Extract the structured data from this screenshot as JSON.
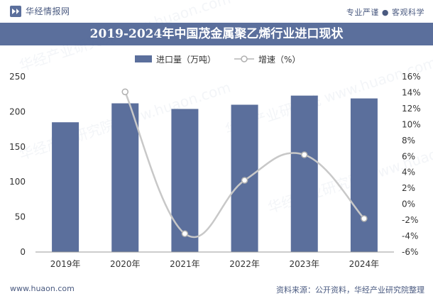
{
  "header": {
    "brand": "华经情报网",
    "slogan": "专业严谨 ● 客观科学"
  },
  "chart_data": {
    "type": "bar",
    "title": "2019-2024年中国茂金属聚乙烯行业进口现状",
    "categories": [
      "2019年",
      "2020年",
      "2021年",
      "2022年",
      "2023年",
      "2024年"
    ],
    "series": [
      {
        "name": "进口量（万吨）",
        "type": "bar",
        "axis": "left",
        "color": "#5b6f9c",
        "values": [
          185,
          212,
          204,
          210,
          223,
          219
        ]
      },
      {
        "name": "增速（%）",
        "type": "line",
        "axis": "right",
        "color": "#c8c8c8",
        "values": [
          null,
          14.1,
          -3.7,
          3.0,
          6.2,
          -1.8
        ]
      }
    ],
    "y_left": {
      "min": 0,
      "max": 250,
      "ticks": [
        "0",
        "50",
        "100",
        "150",
        "200",
        "250"
      ]
    },
    "y_right": {
      "min": -6,
      "max": 16,
      "ticks": [
        "-6%",
        "-4%",
        "-2%",
        "0%",
        "2%",
        "4%",
        "6%",
        "8%",
        "10%",
        "12%",
        "14%",
        "16%"
      ]
    }
  },
  "footer": {
    "url": "www.huaon.com",
    "source": "资料来源：公开资料，华经产业研究院整理"
  },
  "watermark": "华经产业研究院 www.huaon.com"
}
